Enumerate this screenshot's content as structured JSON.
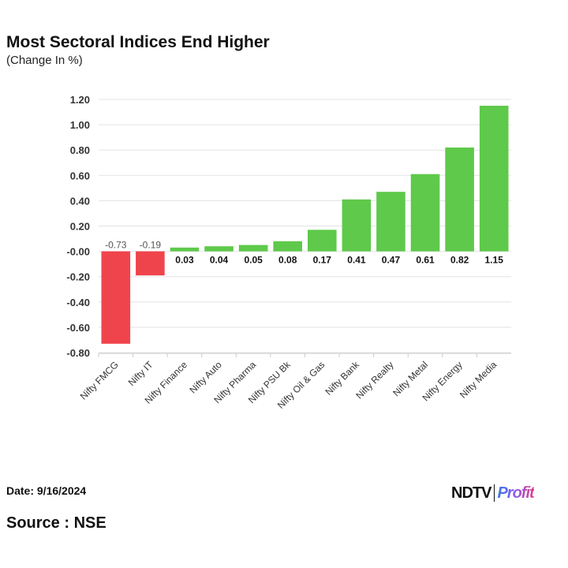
{
  "header": {
    "title": "Most Sectoral Indices End Higher",
    "subtitle": "(Change In %)"
  },
  "footer": {
    "date": "Date: 9/16/2024",
    "source": "Source : NSE",
    "logo": "NDTV Profit",
    "logo_parts": [
      "NDTV",
      "Profit"
    ]
  },
  "chart_data": {
    "type": "bar",
    "title": "Most Sectoral Indices End Higher",
    "ylabel": "(Change In %)",
    "categories": [
      "Nifty FMCG",
      "Nifty IT",
      "Nifty Finance",
      "Nifty Auto",
      "Nifty Pharma",
      "Nifty PSU Bk",
      "Nifty Oil & Gas",
      "Nifty Bank",
      "Nifty Realty",
      "Nifty Metal",
      "Nifty Energy",
      "Nifty Media"
    ],
    "values": [
      -0.73,
      -0.19,
      0.03,
      0.04,
      0.05,
      0.08,
      0.17,
      0.41,
      0.47,
      0.61,
      0.82,
      1.15
    ],
    "data_labels": [
      "-0.73",
      "-0.19",
      "0.03",
      "0.04",
      "0.05",
      "0.08",
      "0.17",
      "0.41",
      "0.47",
      "0.61",
      "0.82",
      "1.15"
    ],
    "ylim": [
      -0.8,
      1.2
    ],
    "yticks": [
      "1.20",
      "1.00",
      "0.80",
      "0.60",
      "0.40",
      "0.20",
      "-0.00",
      "-0.20",
      "-0.40",
      "-0.60",
      "-0.80"
    ],
    "ytick_values": [
      1.2,
      1.0,
      0.8,
      0.6,
      0.4,
      0.2,
      0,
      -0.2,
      -0.4,
      -0.6,
      -0.8
    ],
    "grid": true,
    "colors": {
      "positive": "#5ec94a",
      "negative": "#f0444c"
    }
  }
}
